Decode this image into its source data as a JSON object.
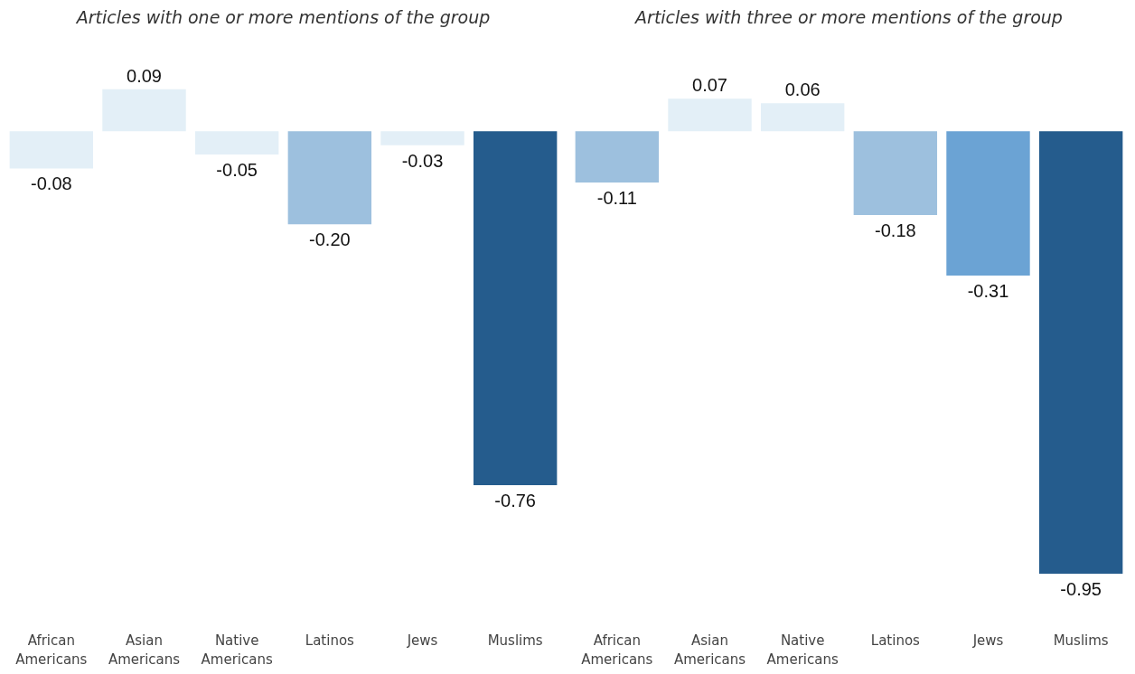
{
  "chart_data": [
    {
      "type": "bar",
      "title": "Articles with one or more mentions of the group",
      "categories": [
        "African Americans",
        "Asian Americans",
        "Native Americans",
        "Latinos",
        "Jews",
        "Muslims"
      ],
      "values": [
        -0.08,
        0.09,
        -0.05,
        -0.2,
        -0.03,
        -0.76
      ],
      "value_labels": [
        "-0.08",
        "0.09",
        "-0.05",
        "-0.20",
        "-0.03",
        "-0.76"
      ],
      "colors": [
        "#e3eff7",
        "#e3eff7",
        "#e3eff7",
        "#9dc0de",
        "#e3eff7",
        "#255c8d"
      ]
    },
    {
      "type": "bar",
      "title": "Articles with three or more mentions of the group",
      "categories": [
        "African Americans",
        "Asian Americans",
        "Native Americans",
        "Latinos",
        "Jews",
        "Muslims"
      ],
      "values": [
        -0.11,
        0.07,
        0.06,
        -0.18,
        -0.31,
        -0.95
      ],
      "value_labels": [
        "-0.11",
        "0.07",
        "0.06",
        "-0.18",
        "-0.31",
        "-0.95"
      ],
      "colors": [
        "#9dc0de",
        "#e3eff7",
        "#e3eff7",
        "#9dc0de",
        "#6ba3d4",
        "#255c8d"
      ]
    }
  ]
}
